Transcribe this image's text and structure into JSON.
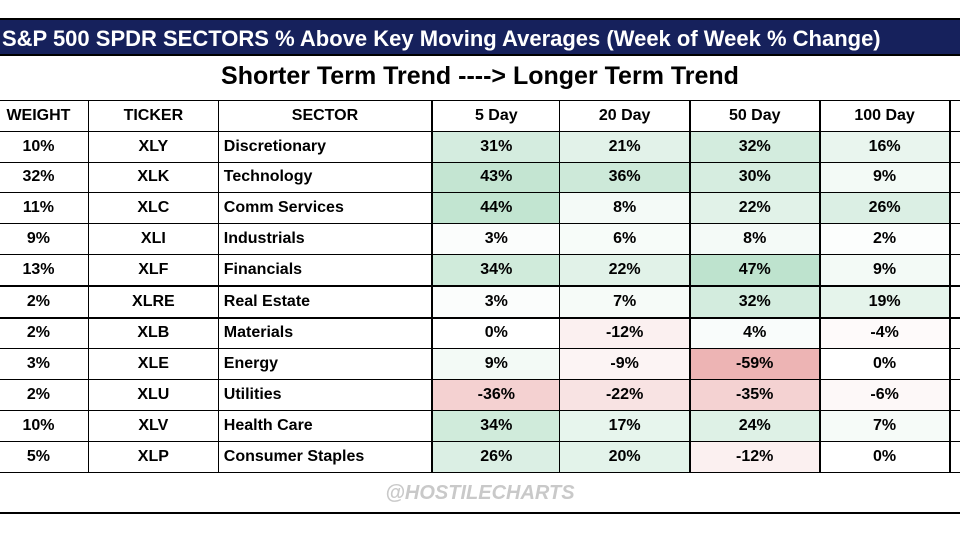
{
  "header": {
    "title": "S&P 500 SPDR SECTORS % Above Key Moving Averages (Week of Week % Change)",
    "subtitle": "Shorter Term Trend ----> Longer Term Trend"
  },
  "table": {
    "columns": [
      "WEIGHT",
      "TICKER",
      "SECTOR",
      "5 Day",
      "20 Day",
      "50 Day",
      "100 Day"
    ],
    "rows": [
      [
        "10%",
        "XLY",
        "Discretionary",
        "31%",
        "21%",
        "32%",
        "16%"
      ],
      [
        "32%",
        "XLK",
        "Technology",
        "43%",
        "36%",
        "30%",
        "9%"
      ],
      [
        "11%",
        "XLC",
        "Comm Services",
        "44%",
        "8%",
        "22%",
        "26%"
      ],
      [
        "9%",
        "XLI",
        "Industrials",
        "3%",
        "6%",
        "8%",
        "2%"
      ],
      [
        "13%",
        "XLF",
        "Financials",
        "34%",
        "22%",
        "47%",
        "9%"
      ],
      [
        "2%",
        "XLRE",
        "Real Estate",
        "3%",
        "7%",
        "32%",
        "19%"
      ],
      [
        "2%",
        "XLB",
        "Materials",
        "0%",
        "-12%",
        "4%",
        "-4%"
      ],
      [
        "3%",
        "XLE",
        "Energy",
        "9%",
        "-9%",
        "-59%",
        "0%"
      ],
      [
        "2%",
        "XLU",
        "Utilities",
        "-36%",
        "-22%",
        "-35%",
        "-6%"
      ],
      [
        "10%",
        "XLV",
        "Health Care",
        "34%",
        "17%",
        "24%",
        "7%"
      ],
      [
        "5%",
        "XLP",
        "Consumer Staples",
        "26%",
        "20%",
        "-12%",
        "0%"
      ]
    ]
  },
  "watermark": "@HOSTILECHARTS"
}
